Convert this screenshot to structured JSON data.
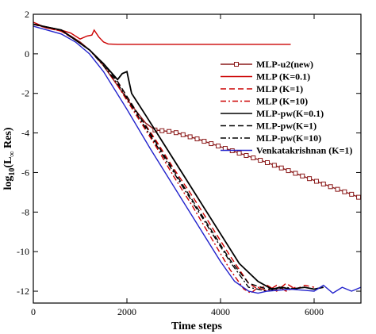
{
  "chart_data": {
    "type": "line",
    "title": "",
    "xlabel": "Time steps",
    "ylabel_main": "log",
    "ylabel_sub": "10",
    "ylabel_rest": "(L",
    "ylabel_inf": "∞",
    "ylabel_end": " Res)",
    "xlim": [
      0,
      7000
    ],
    "ylim": [
      -12.6,
      2
    ],
    "xticks": [
      0,
      2000,
      4000,
      6000
    ],
    "yticks": [
      2,
      0,
      -2,
      -4,
      -6,
      -8,
      -10,
      -12
    ],
    "grid": false,
    "legend_position": "upper-right",
    "series": [
      {
        "name": "MLP-u2(new)",
        "color": "#8b1a1a",
        "dash": "solid",
        "marker": "square",
        "x": [
          0,
          300,
          500,
          800,
          1000,
          1200,
          1500,
          1800,
          2100,
          2400,
          2600,
          2800,
          3000,
          3500,
          4000,
          4500,
          5000,
          5500,
          6000,
          6500,
          6800,
          7000
        ],
        "y": [
          1.5,
          1.35,
          1.25,
          0.9,
          0.6,
          0.2,
          -0.6,
          -1.6,
          -2.6,
          -3.5,
          -3.85,
          -3.9,
          -3.95,
          -4.3,
          -4.7,
          -5.1,
          -5.5,
          -5.95,
          -6.4,
          -6.85,
          -7.1,
          -7.3
        ]
      },
      {
        "name": "MLP (K=0.1)",
        "color": "#cc0000",
        "dash": "solid",
        "marker": "none",
        "x": [
          0,
          200,
          400,
          600,
          800,
          1000,
          1150,
          1250,
          1300,
          1400,
          1500,
          1600,
          1800,
          2000,
          3000,
          4000,
          5500
        ],
        "y": [
          1.6,
          1.4,
          1.3,
          1.2,
          1.05,
          0.75,
          0.9,
          0.95,
          1.2,
          0.85,
          0.6,
          0.5,
          0.48,
          0.48,
          0.48,
          0.48,
          0.48
        ]
      },
      {
        "name": "MLP (K=1)",
        "color": "#cc0000",
        "dash": "dash",
        "marker": "none",
        "x": [
          0,
          300,
          600,
          900,
          1200,
          1500,
          1800,
          2200,
          2600,
          3000,
          3400,
          3800,
          4200,
          4600,
          4800,
          5000,
          5200,
          5400,
          5600,
          5800,
          6000
        ],
        "y": [
          1.5,
          1.3,
          1.15,
          0.7,
          0.2,
          -0.5,
          -1.4,
          -2.9,
          -4.3,
          -5.8,
          -7.2,
          -8.7,
          -10.2,
          -11.6,
          -11.9,
          -11.7,
          -12.0,
          -11.6,
          -11.9,
          -11.7,
          -11.8
        ]
      },
      {
        "name": "MLP (K=10)",
        "color": "#cc0000",
        "dash": "dashdot",
        "marker": "none",
        "x": [
          0,
          300,
          600,
          900,
          1200,
          1500,
          1800,
          2200,
          2600,
          3000,
          3400,
          3800,
          4200,
          4500,
          4650,
          4800,
          5000,
          5200,
          5400,
          5600
        ],
        "y": [
          1.5,
          1.3,
          1.15,
          0.7,
          0.2,
          -0.6,
          -1.6,
          -3.1,
          -4.6,
          -6.2,
          -7.7,
          -9.3,
          -10.9,
          -11.9,
          -12.1,
          -11.8,
          -12.0,
          -11.7,
          -12.0,
          -11.8
        ]
      },
      {
        "name": "MLP-pw(K=0.1)",
        "color": "#000000",
        "dash": "solid",
        "marker": "none",
        "x": [
          0,
          300,
          600,
          900,
          1200,
          1500,
          1800,
          1900,
          2000,
          2100,
          2400,
          2800,
          3200,
          3600,
          4000,
          4400,
          4800,
          5100,
          5300,
          5500,
          5800,
          6000,
          6200
        ],
        "y": [
          1.5,
          1.35,
          1.2,
          0.7,
          0.2,
          -0.5,
          -1.3,
          -1.0,
          -0.9,
          -2.0,
          -3.1,
          -4.6,
          -6.1,
          -7.6,
          -9.1,
          -10.6,
          -11.5,
          -11.9,
          -11.8,
          -11.9,
          -11.8,
          -11.9,
          -11.8
        ]
      },
      {
        "name": "MLP-pw(K=1)",
        "color": "#000000",
        "dash": "dash",
        "marker": "none",
        "x": [
          0,
          300,
          600,
          900,
          1200,
          1500,
          1800,
          2200,
          2600,
          3000,
          3400,
          3800,
          4200,
          4600,
          5000,
          5300,
          5500,
          5800,
          6000
        ],
        "y": [
          1.5,
          1.35,
          1.2,
          0.7,
          0.2,
          -0.5,
          -1.4,
          -2.9,
          -4.4,
          -5.9,
          -7.4,
          -8.9,
          -10.4,
          -11.6,
          -11.9,
          -11.8,
          -11.9,
          -11.8,
          -11.9
        ]
      },
      {
        "name": "MLP-pw(K=10)",
        "color": "#000000",
        "dash": "dashdot",
        "marker": "none",
        "x": [
          0,
          300,
          600,
          900,
          1200,
          1500,
          1800,
          2200,
          2600,
          3000,
          3400,
          3800,
          4200,
          4600,
          5000,
          5200,
          5400,
          5600
        ],
        "y": [
          1.5,
          1.35,
          1.2,
          0.7,
          0.2,
          -0.6,
          -1.5,
          -3.0,
          -4.5,
          -6.0,
          -7.5,
          -9.0,
          -10.5,
          -11.8,
          -12.0,
          -11.9,
          -11.8,
          -11.9
        ]
      },
      {
        "name": "Venkatakrishnan (K=1)",
        "color": "#2222cc",
        "dash": "solid",
        "marker": "none",
        "x": [
          0,
          300,
          600,
          900,
          1200,
          1500,
          2000,
          2500,
          3000,
          3500,
          4000,
          4300,
          4600,
          4800,
          5000,
          5500,
          6000,
          6200,
          6400,
          6600,
          6800,
          7000
        ],
        "y": [
          1.4,
          1.2,
          1.0,
          0.6,
          0.0,
          -0.9,
          -2.8,
          -4.8,
          -6.7,
          -8.6,
          -10.5,
          -11.5,
          -12.0,
          -12.1,
          -12.0,
          -11.9,
          -12.0,
          -11.7,
          -12.1,
          -11.8,
          -12.0,
          -11.8
        ]
      }
    ]
  }
}
